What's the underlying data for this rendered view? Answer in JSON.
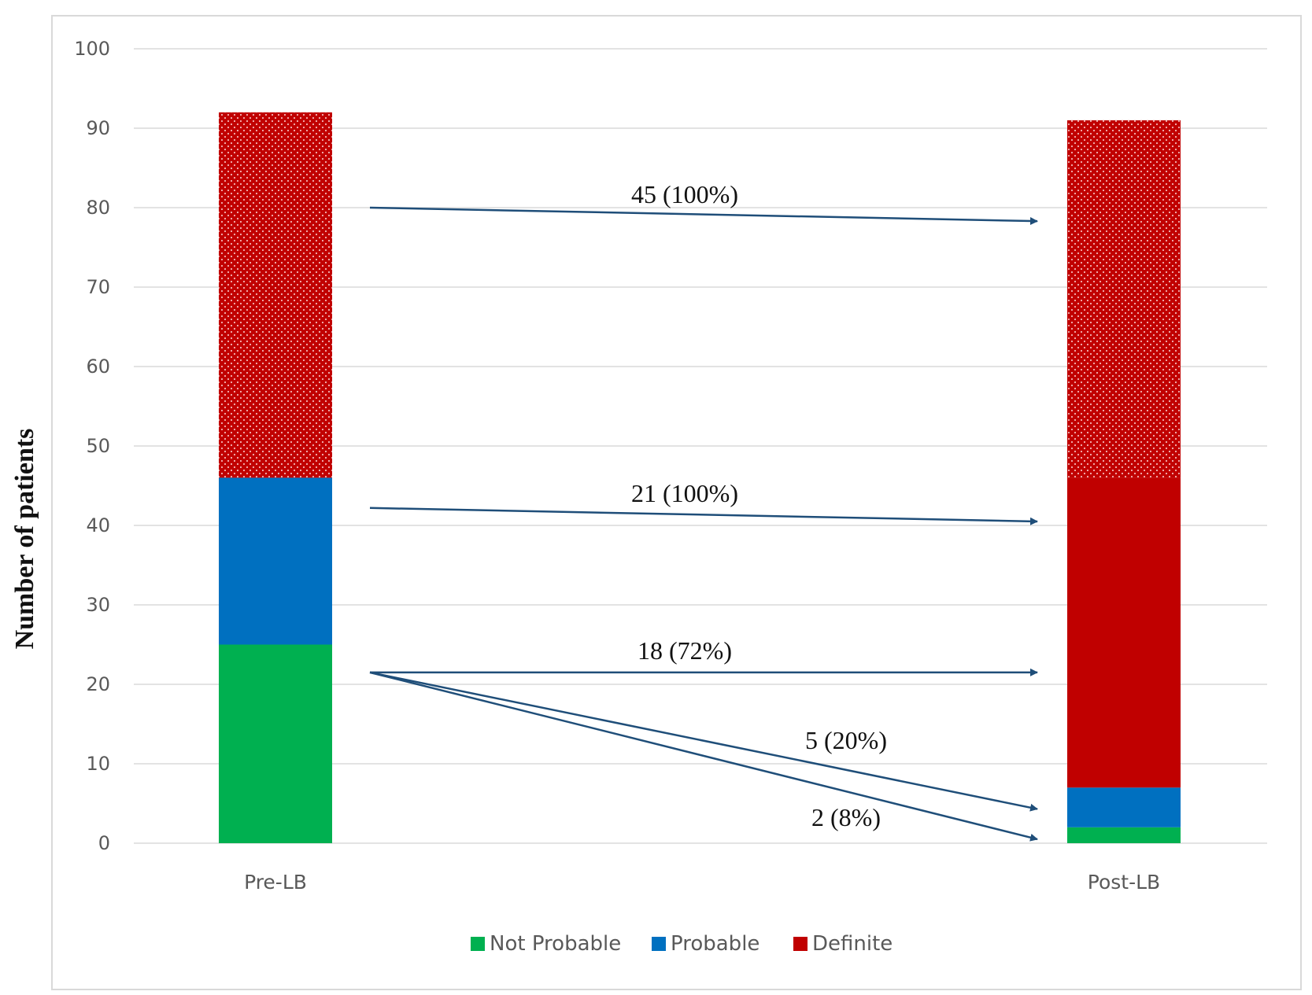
{
  "chart_data": {
    "type": "bar",
    "stacked": true,
    "title": "",
    "xlabel": "",
    "ylabel": "Number of patients",
    "ylim": [
      0,
      100
    ],
    "yticks": [
      0,
      10,
      20,
      30,
      40,
      50,
      60,
      70,
      80,
      90,
      100
    ],
    "grid": true,
    "legend_position": "bottom",
    "categories": [
      "Pre-LB",
      "Post-LB"
    ],
    "series": [
      {
        "name": "Not Probable",
        "color": "#00b050",
        "values": [
          25,
          2
        ]
      },
      {
        "name": "Probable",
        "color": "#0070c0",
        "values": [
          21,
          5
        ]
      },
      {
        "name": "Definite",
        "color": "#c00000",
        "values": [
          46,
          84
        ]
      }
    ],
    "definite_split": {
      "Pre-LB": [
        {
          "pattern": "dotted",
          "value": 46
        }
      ],
      "Post-LB": [
        {
          "pattern": "solid",
          "value": 39
        },
        {
          "pattern": "dotted",
          "value": 45
        }
      ]
    },
    "annotations": [
      {
        "text": "45 (100%)",
        "from_y": 80,
        "to_y": 78.3
      },
      {
        "text": "21 (100%)",
        "from_y": 42.2,
        "to_y": 40.5
      },
      {
        "text": "18 (72%)",
        "from_y": 21.5,
        "to_y": 21.5
      },
      {
        "text": "5 (20%)",
        "from_y": 21.5,
        "to_y": 4.3
      },
      {
        "text": "2 (8%)",
        "from_y": 21.5,
        "to_y": 0.5
      }
    ],
    "annotation_color": "#1f4e79"
  }
}
